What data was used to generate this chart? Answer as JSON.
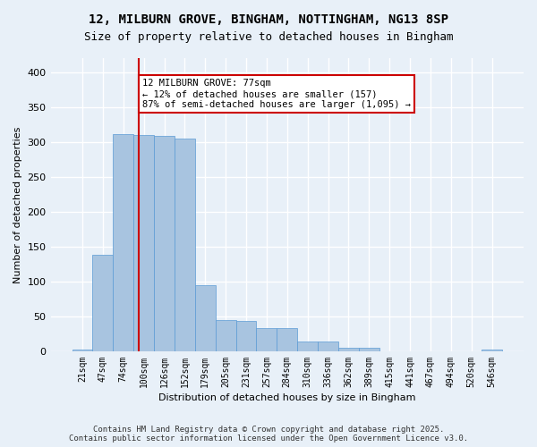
{
  "title_line1": "12, MILBURN GROVE, BINGHAM, NOTTINGHAM, NG13 8SP",
  "title_line2": "Size of property relative to detached houses in Bingham",
  "xlabel": "Distribution of detached houses by size in Bingham",
  "ylabel": "Number of detached properties",
  "categories": [
    "21sqm",
    "47sqm",
    "74sqm",
    "100sqm",
    "126sqm",
    "152sqm",
    "179sqm",
    "205sqm",
    "231sqm",
    "257sqm",
    "284sqm",
    "310sqm",
    "336sqm",
    "362sqm",
    "389sqm",
    "415sqm",
    "441sqm",
    "467sqm",
    "494sqm",
    "520sqm",
    "546sqm"
  ],
  "values": [
    2,
    138,
    311,
    310,
    308,
    305,
    95,
    45,
    44,
    33,
    33,
    14,
    14,
    5,
    5,
    0,
    0,
    0,
    0,
    0,
    2
  ],
  "bar_color": "#a8c4e0",
  "bar_edge_color": "#5b9bd5",
  "background_color": "#e8f0f8",
  "grid_color": "#ffffff",
  "vline_x": 2.77,
  "vline_color": "#cc0000",
  "annotation_text": "12 MILBURN GROVE: 77sqm\n← 12% of detached houses are smaller (157)\n87% of semi-detached houses are larger (1,095) →",
  "annotation_box_color": "#cc0000",
  "annotation_fill": "#ffffff",
  "footer_text": "Contains HM Land Registry data © Crown copyright and database right 2025.\nContains public sector information licensed under the Open Government Licence v3.0.",
  "ylim": [
    0,
    420
  ],
  "yticks": [
    0,
    50,
    100,
    150,
    200,
    250,
    300,
    350,
    400
  ]
}
